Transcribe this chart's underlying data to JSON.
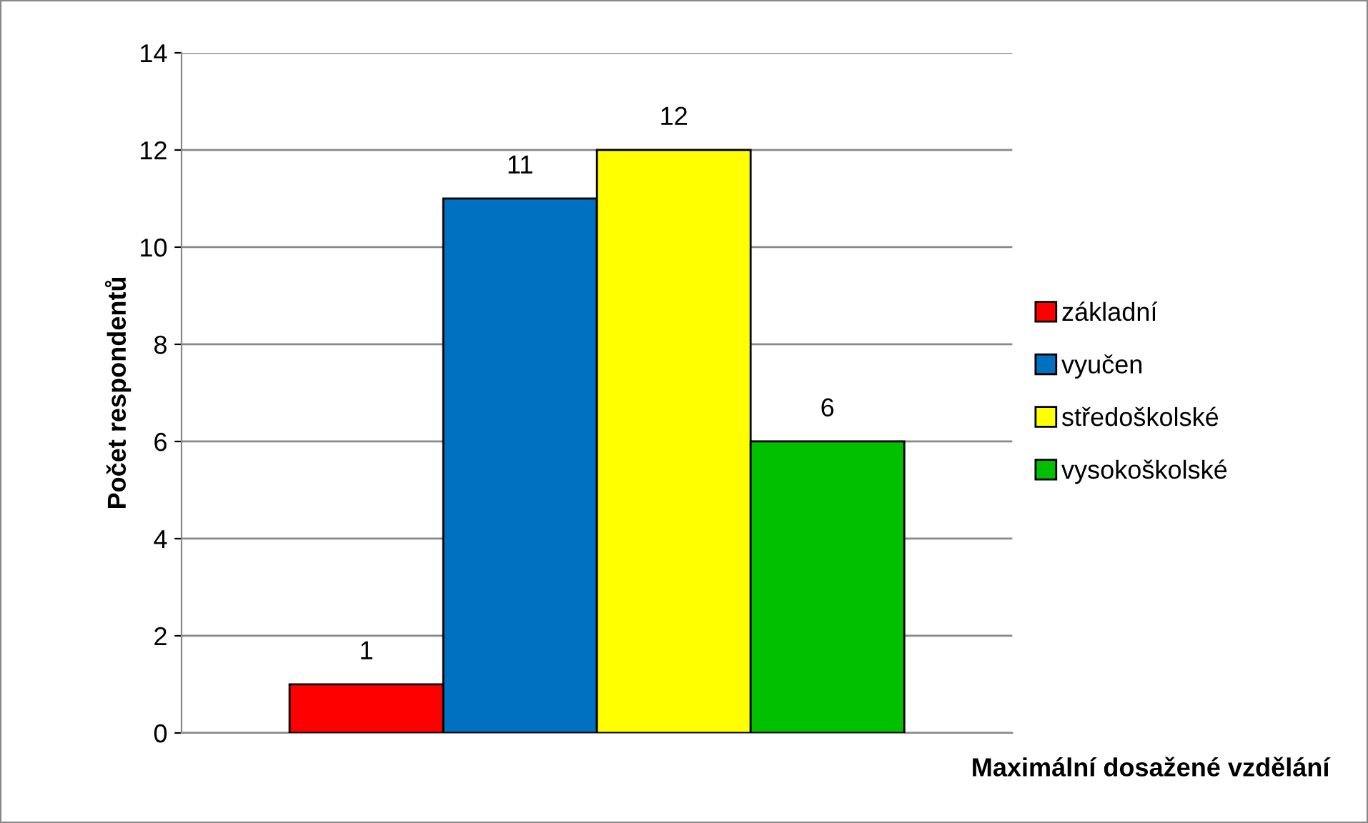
{
  "chart_data": {
    "type": "bar",
    "xlabel": "Maximální dosažené vzdělání",
    "ylabel": "Počet respondentů",
    "categories": [
      null
    ],
    "series": [
      {
        "name": "základní",
        "color": "#ff0000",
        "values": [
          1
        ]
      },
      {
        "name": "vyučen",
        "color": "#0070c0",
        "values": [
          11
        ]
      },
      {
        "name": "středoškolské",
        "color": "#ffff00",
        "values": [
          12
        ]
      },
      {
        "name": "vysokoškolské",
        "color": "#00c000",
        "values": [
          6
        ]
      }
    ],
    "ylim": [
      0,
      14
    ],
    "yticks": [
      0,
      2,
      4,
      6,
      8,
      10,
      12,
      14
    ],
    "grid": "y",
    "legend": "right",
    "data_labels": true
  }
}
